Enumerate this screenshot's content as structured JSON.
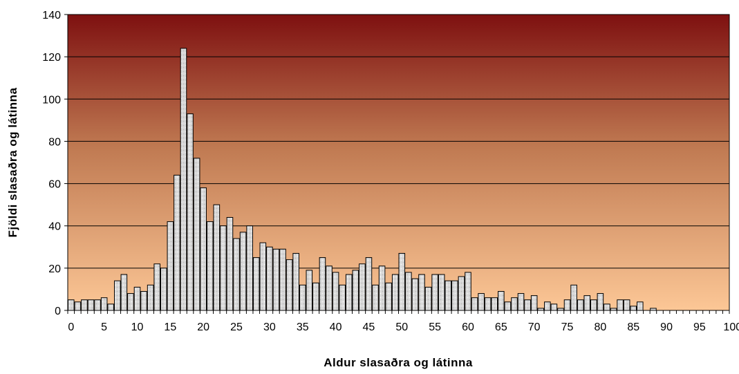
{
  "chart_data": {
    "type": "bar",
    "title": "",
    "xlabel": "Aldur slasaðra og látinna",
    "ylabel": "Fjöldi slasaðra og látinna",
    "x_range": [
      0,
      100
    ],
    "ylim": [
      0,
      140
    ],
    "y_ticks": [
      0,
      20,
      40,
      60,
      80,
      100,
      120,
      140
    ],
    "x_ticks": [
      0,
      5,
      10,
      15,
      20,
      25,
      30,
      35,
      40,
      45,
      50,
      55,
      60,
      65,
      70,
      75,
      80,
      85,
      90,
      95,
      100
    ],
    "grid": "horizontal",
    "legend": "none",
    "colors": {
      "background_top": "#7e1010",
      "background_mid": "#c07a52",
      "background_bottom": "#fcc796",
      "bar_fill": "#dcdcdc",
      "bar_stroke": "#000000",
      "gridline": "#000000"
    },
    "x": [
      0,
      1,
      2,
      3,
      4,
      5,
      6,
      7,
      8,
      9,
      10,
      11,
      12,
      13,
      14,
      15,
      16,
      17,
      18,
      19,
      20,
      21,
      22,
      23,
      24,
      25,
      26,
      27,
      28,
      29,
      30,
      31,
      32,
      33,
      34,
      35,
      36,
      37,
      38,
      39,
      40,
      41,
      42,
      43,
      44,
      45,
      46,
      47,
      48,
      49,
      50,
      51,
      52,
      53,
      54,
      55,
      56,
      57,
      58,
      59,
      60,
      61,
      62,
      63,
      64,
      65,
      66,
      67,
      68,
      69,
      70,
      71,
      72,
      73,
      74,
      75,
      76,
      77,
      78,
      79,
      80,
      81,
      82,
      83,
      84,
      85,
      86,
      87,
      88,
      89,
      90,
      91,
      92,
      93,
      94,
      95,
      96,
      97,
      98,
      99
    ],
    "values": [
      5,
      4,
      5,
      5,
      5,
      6,
      3,
      14,
      17,
      8,
      11,
      9,
      12,
      22,
      20,
      42,
      64,
      124,
      93,
      72,
      58,
      42,
      50,
      40,
      44,
      34,
      37,
      40,
      25,
      32,
      30,
      29,
      29,
      24,
      27,
      12,
      19,
      13,
      25,
      21,
      18,
      12,
      17,
      19,
      22,
      25,
      12,
      21,
      13,
      17,
      27,
      18,
      15,
      17,
      11,
      17,
      17,
      14,
      14,
      16,
      18,
      6,
      8,
      6,
      6,
      9,
      4,
      6,
      8,
      5,
      7,
      1,
      4,
      3,
      1,
      5,
      12,
      5,
      7,
      5,
      8,
      3,
      1,
      5,
      5,
      2,
      4,
      0,
      1,
      0,
      0,
      0,
      0,
      0,
      0,
      0,
      0,
      0,
      0,
      0
    ]
  }
}
